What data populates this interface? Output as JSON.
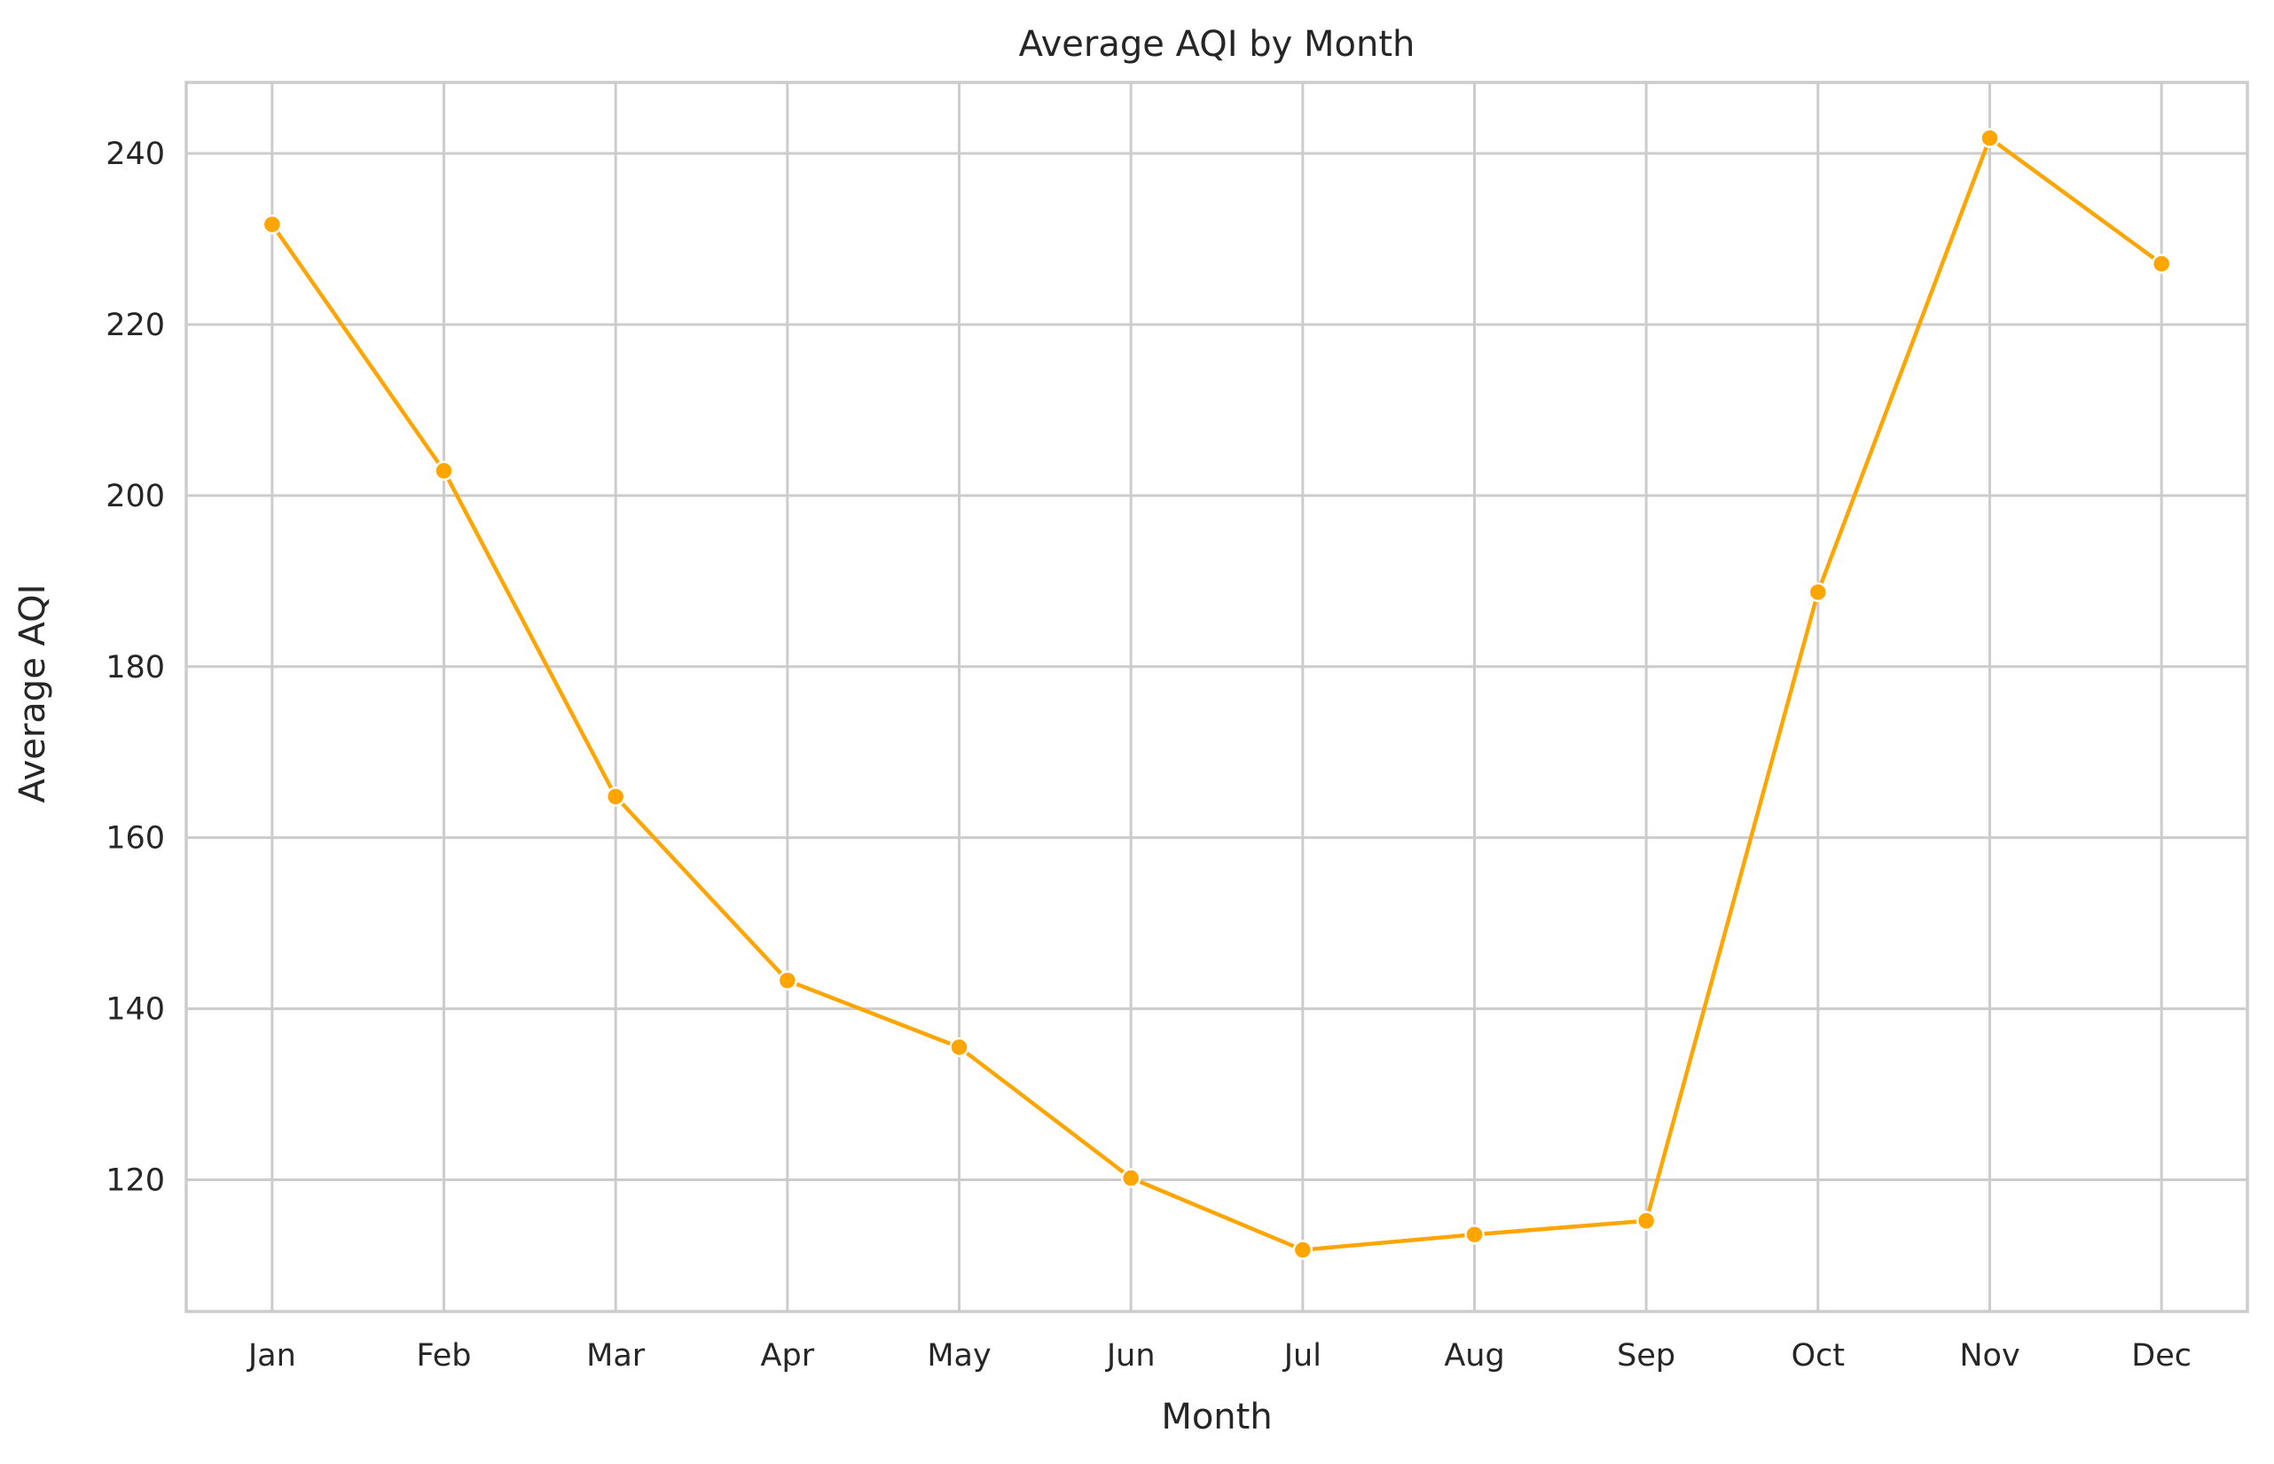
{
  "chart_data": {
    "type": "line",
    "title": "Average AQI by Month",
    "xlabel": "Month",
    "ylabel": "Average AQI",
    "categories": [
      "Jan",
      "Feb",
      "Mar",
      "Apr",
      "May",
      "Jun",
      "Jul",
      "Aug",
      "Sep",
      "Oct",
      "Nov",
      "Dec"
    ],
    "series": [
      {
        "values": [
          231.7,
          202.9,
          164.8,
          143.3,
          135.5,
          120.2,
          111.8,
          113.6,
          115.2,
          188.7,
          241.8,
          227.1
        ],
        "color": "#FFA500"
      }
    ],
    "ylim": [
      104.6,
      248.3
    ],
    "yticks": [
      120,
      140,
      160,
      180,
      200,
      220,
      240
    ],
    "grid": true,
    "legend": "none",
    "colors": {
      "line": "#FFA500",
      "grid": "#cccccc",
      "text": "#262626",
      "background": "#ffffff"
    }
  }
}
